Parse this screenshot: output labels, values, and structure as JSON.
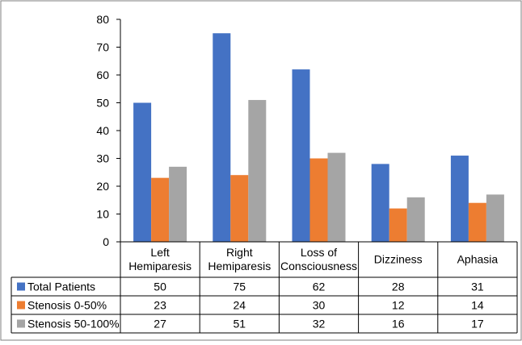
{
  "chart_data": {
    "type": "bar",
    "categories": [
      [
        "Left",
        "Hemiparesis"
      ],
      [
        "Right",
        "Hemiparesis"
      ],
      [
        "Loss of",
        "Consciousness"
      ],
      [
        "Dizziness"
      ],
      [
        "Aphasia"
      ]
    ],
    "series": [
      {
        "name": "Total Patients",
        "color": "#4472C4",
        "values": [
          50,
          75,
          62,
          28,
          31
        ]
      },
      {
        "name": "Stenosis 0-50%",
        "color": "#ED7D31",
        "values": [
          23,
          24,
          30,
          12,
          14
        ]
      },
      {
        "name": "Stenosis 50-100%",
        "color": "#A5A5A5",
        "values": [
          27,
          51,
          32,
          16,
          17
        ]
      }
    ],
    "ylim": [
      0,
      80
    ],
    "yticks": [
      "0",
      "10",
      "20",
      "30",
      "40",
      "50",
      "60",
      "70",
      "80"
    ],
    "grid": false,
    "legend": "data-table",
    "title": "",
    "xlabel": "",
    "ylabel": ""
  }
}
